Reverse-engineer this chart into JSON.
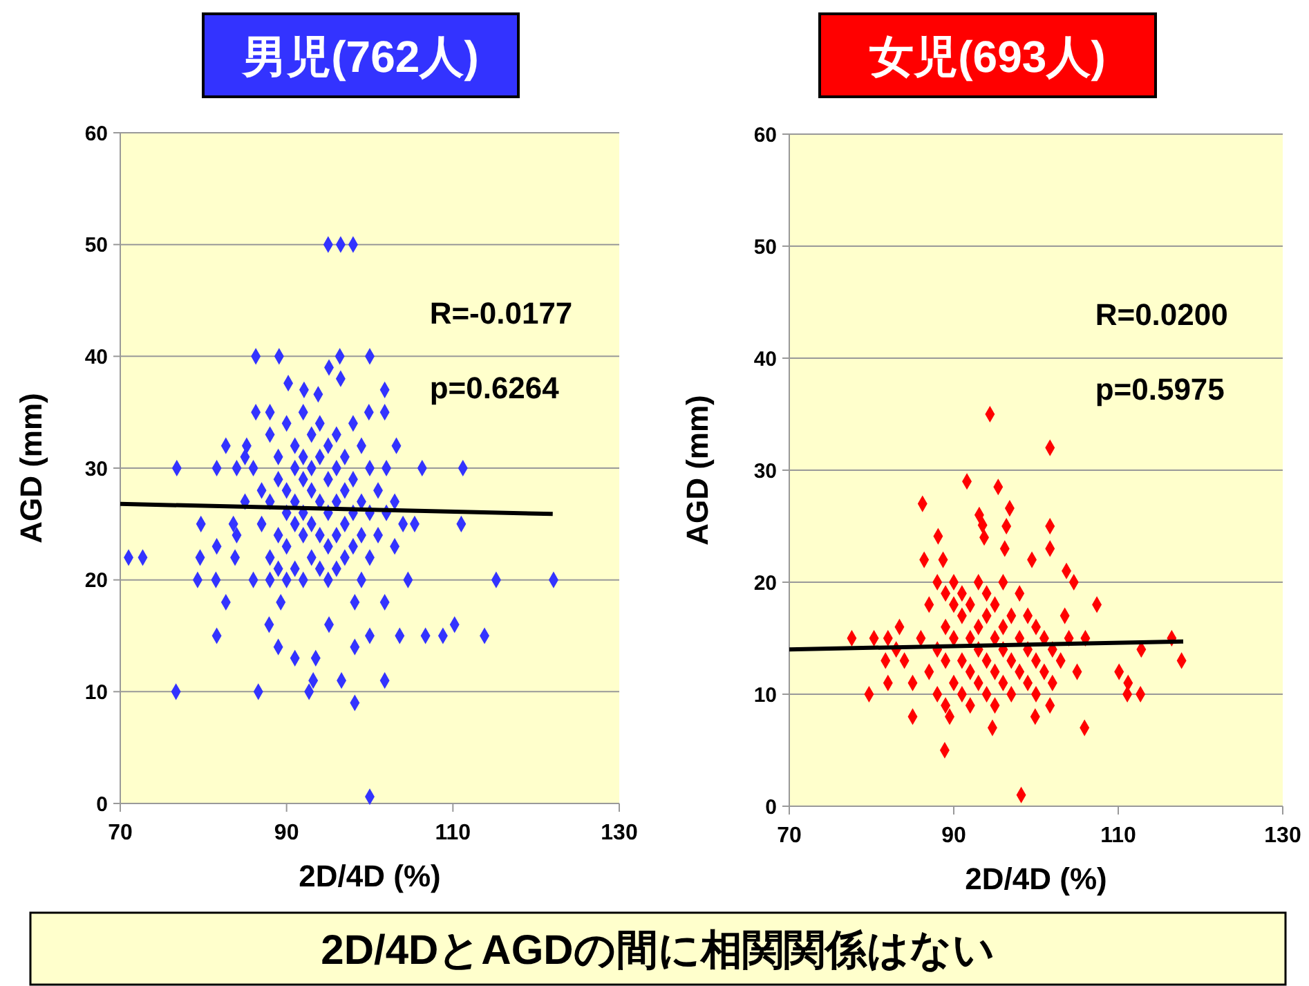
{
  "chart_data": [
    {
      "type": "scatter",
      "title": "男児(762人)",
      "xlabel": "2D/4D (%)",
      "ylabel": "AGD (mm)",
      "xlim": [
        70,
        130
      ],
      "xticks": [
        70,
        90,
        110,
        130
      ],
      "ylim": [
        0,
        60
      ],
      "yticks": [
        0,
        10,
        20,
        30,
        40,
        50,
        60
      ],
      "grid": "y",
      "annotations": [
        "R=-0.0177",
        "p=0.6264"
      ],
      "series": [
        {
          "type": "scatter",
          "marker": "diamond",
          "color": "#3333ff",
          "x": [
            95,
            96.5,
            98,
            86.3,
            89.1,
            96.4,
            100,
            95.1,
            96.5,
            90.2,
            92.1,
            93.8,
            101.8,
            86.3,
            88,
            101.8,
            99.9,
            82.7,
            85.2,
            103.2,
            76.8,
            81.6,
            106.3,
            111.2,
            79.7,
            83.6,
            105.4,
            111,
            71,
            72.7,
            79.6,
            81.6,
            83.8,
            79.3,
            81.5,
            115.2,
            122.1,
            104.6,
            82.7,
            89.3,
            98.2,
            101.8,
            81.6,
            87.9,
            95.1,
            100,
            103.6,
            106.7,
            108.8,
            110.2,
            113.8,
            89,
            91,
            93.5,
            98.2,
            76.7,
            86.6,
            92.7,
            93.2,
            96.6,
            101.8,
            98.2,
            100,
            86,
            87,
            87,
            88,
            88,
            88,
            89,
            89,
            89,
            89,
            90,
            90,
            90,
            90,
            90,
            91,
            91,
            91,
            91,
            91,
            92,
            92,
            92,
            92,
            92,
            92,
            93,
            93,
            93,
            93,
            93,
            94,
            94,
            94,
            94,
            94,
            95,
            95,
            95,
            95,
            95,
            96,
            96,
            96,
            96,
            96,
            97,
            97,
            97,
            97,
            98,
            98,
            98,
            98,
            99,
            99,
            99,
            99,
            100,
            100,
            100,
            101,
            101,
            102,
            102,
            103,
            103,
            104,
            85,
            85,
            84,
            84,
            86,
            88
          ],
          "values": [
            50,
            50,
            50,
            40,
            40,
            40,
            40,
            39,
            38,
            37.6,
            37,
            36.6,
            37,
            35,
            35,
            35,
            35,
            32,
            32,
            32,
            30,
            30,
            30,
            30,
            25,
            25,
            25,
            25,
            22,
            22,
            22,
            23,
            22,
            20,
            20,
            20,
            20,
            20,
            18,
            18,
            18,
            18,
            15,
            16,
            16,
            15,
            15,
            15,
            15,
            16,
            15,
            14,
            13,
            13,
            14,
            10,
            10,
            10,
            11,
            11,
            11,
            9,
            0.6,
            30,
            28,
            25,
            33,
            27,
            22,
            31,
            29,
            24,
            21,
            34,
            28,
            26,
            23,
            20,
            32,
            30,
            27,
            25,
            21,
            35,
            31,
            29,
            26,
            24,
            20,
            33,
            30,
            28,
            25,
            22,
            34,
            31,
            27,
            24,
            21,
            32,
            29,
            26,
            23,
            20,
            33,
            30,
            27,
            24,
            21,
            31,
            28,
            25,
            22,
            34,
            29,
            26,
            23,
            32,
            27,
            24,
            20,
            30,
            26,
            22,
            28,
            24,
            30,
            26,
            27,
            23,
            25,
            27,
            31,
            30,
            24,
            20,
            20
          ]
        },
        {
          "type": "line",
          "color": "#000000",
          "x": [
            70,
            122
          ],
          "values": [
            26.8,
            25.9
          ]
        }
      ]
    },
    {
      "type": "scatter",
      "title": "女児(693人)",
      "xlabel": "2D/4D (%)",
      "ylabel": "AGD (mm)",
      "xlim": [
        70,
        130
      ],
      "xticks": [
        70,
        90,
        110,
        130
      ],
      "ylim": [
        0,
        60
      ],
      "yticks": [
        0,
        10,
        20,
        30,
        40,
        50,
        60
      ],
      "grid": "y",
      "annotations": [
        "R=0.0200",
        "p=0.5975"
      ],
      "series": [
        {
          "type": "scatter",
          "marker": "diamond",
          "color": "#ff0000",
          "x": [
            94.4,
            101.7,
            91.6,
            95.4,
            86.2,
            96.8,
            93.1,
            101.7,
            93.5,
            96.4,
            88.1,
            93.7,
            101.7,
            96.2,
            86.4,
            88.7,
            99.5,
            103.7,
            104.6,
            107.4,
            77.6,
            80.3,
            83.4,
            112.8,
            116.5,
            117.7,
            110.1,
            111.2,
            112.7,
            111.1,
            79.7,
            81.7,
            82,
            85,
            89.5,
            94.7,
            105.9,
            88.9,
            98.2,
            103.5,
            99.9,
            101.7,
            86,
            87,
            87,
            88,
            88,
            88,
            89,
            89,
            89,
            89,
            90,
            90,
            90,
            90,
            91,
            91,
            91,
            91,
            92,
            92,
            92,
            92,
            93,
            93,
            93,
            93,
            94,
            94,
            94,
            94,
            95,
            95,
            95,
            95,
            96,
            96,
            96,
            96,
            97,
            97,
            97,
            98,
            98,
            98,
            99,
            99,
            99,
            100,
            100,
            100,
            101,
            101,
            102,
            102,
            103,
            104,
            105,
            106,
            84,
            85,
            83,
            82
          ],
          "values": [
            35,
            32,
            29,
            28.5,
            27,
            26.6,
            26,
            25,
            25.1,
            25,
            24.1,
            24,
            23,
            23,
            22,
            22,
            22,
            21,
            20,
            18,
            15,
            15,
            16,
            14,
            15,
            13,
            12,
            11,
            10,
            10,
            10,
            13,
            11,
            8,
            8,
            7,
            7,
            5,
            1,
            17,
            8,
            9,
            15,
            12,
            18,
            10,
            14,
            20,
            9,
            13,
            16,
            19,
            11,
            15,
            18,
            20,
            10,
            13,
            17,
            19,
            9,
            12,
            15,
            18,
            11,
            14,
            16,
            20,
            10,
            13,
            17,
            19,
            9,
            12,
            15,
            18,
            11,
            14,
            16,
            20,
            10,
            13,
            17,
            12,
            15,
            19,
            11,
            14,
            17,
            10,
            13,
            16,
            12,
            15,
            11,
            14,
            13,
            15,
            12,
            15,
            13,
            11,
            14,
            15
          ]
        },
        {
          "type": "line",
          "color": "#000000",
          "x": [
            70,
            117.9
          ],
          "values": [
            14.0,
            14.7
          ]
        }
      ]
    },
    {
      "type": "other",
      "title": "2D/4DとAGDの間に相関関係はない"
    }
  ]
}
